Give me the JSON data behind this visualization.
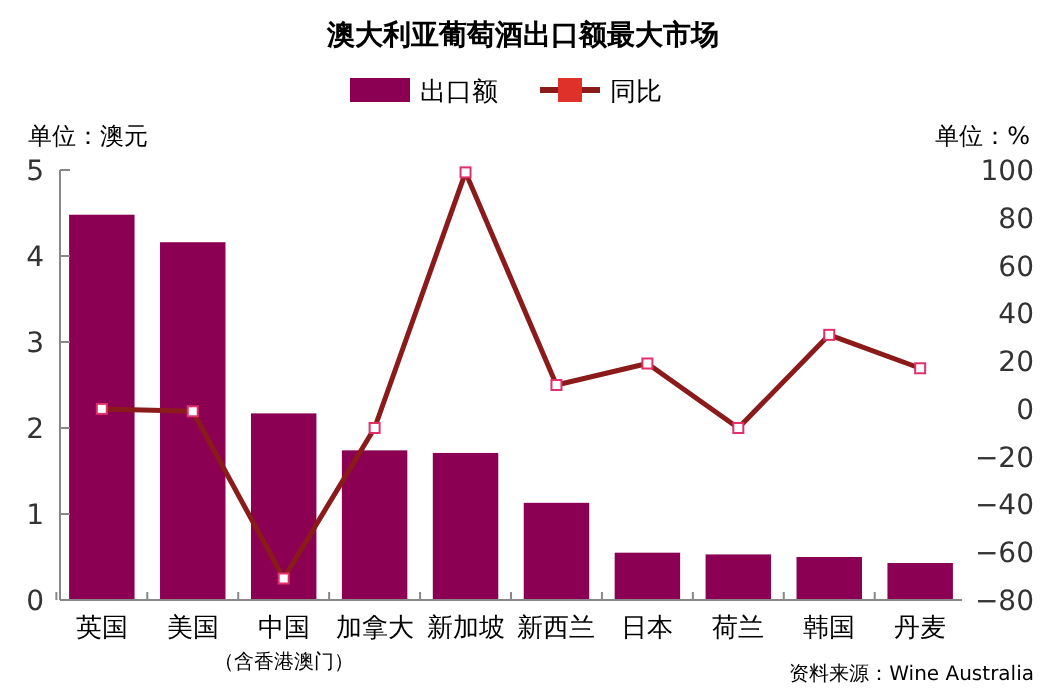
{
  "chart_data": {
    "type": "bar",
    "title": "澳大利亚葡萄酒出口额最大市场",
    "ylabel": "单位：澳元",
    "y2label": "单位：%",
    "categories": [
      "英国",
      "美国",
      "中国",
      "加拿大",
      "新加坡",
      "新西兰",
      "日本",
      "荷兰",
      "韩国",
      "丹麦"
    ],
    "series": [
      {
        "name": "出口额",
        "color": "#8b0052",
        "values": [
          4.48,
          4.16,
          2.17,
          1.74,
          1.71,
          1.13,
          0.55,
          0.53,
          0.5,
          0.43
        ]
      },
      {
        "name": "同比",
        "type": "line",
        "axis": "y2",
        "color": "#8b1a1a",
        "marker": "square",
        "values": [
          0,
          -1,
          -71,
          -8,
          99,
          10,
          19,
          -8,
          31,
          17
        ]
      }
    ],
    "ylim": [
      0,
      5
    ],
    "yticks": [
      0,
      1,
      2,
      3,
      4,
      5
    ],
    "y2lim": [
      -80,
      100
    ],
    "y2ticks": [
      -80,
      -60,
      -40,
      -20,
      0,
      20,
      40,
      60,
      80,
      100
    ],
    "annotations": [
      "（含香港澳门）",
      "资料来源：Wine Australia"
    ],
    "legend": "top",
    "grid": false
  }
}
